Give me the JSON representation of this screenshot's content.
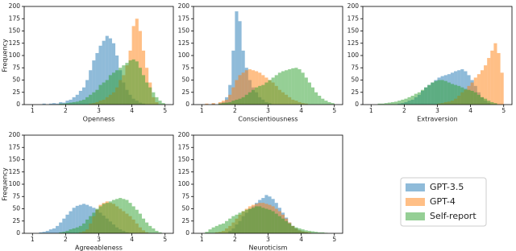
{
  "chart_data": [
    {
      "type": "histogram",
      "xlabel": "Openness",
      "ylabel": "Frequency",
      "xlim": [
        0.75,
        5.25
      ],
      "xticks": [
        1,
        2,
        3,
        4,
        5
      ],
      "ylim": [
        0,
        200
      ],
      "yticks": [
        0,
        25,
        50,
        75,
        100,
        125,
        150,
        175,
        200
      ],
      "bins": [
        1,
        1.1,
        1.2,
        1.3,
        1.4,
        1.5,
        1.6,
        1.7,
        1.8,
        1.9,
        2,
        2.1,
        2.2,
        2.3,
        2.4,
        2.5,
        2.6,
        2.7,
        2.8,
        2.9,
        3,
        3.1,
        3.2,
        3.3,
        3.4,
        3.5,
        3.6,
        3.7,
        3.8,
        3.9,
        4,
        4.1,
        4.2,
        4.3,
        4.4,
        4.5,
        4.6,
        4.7,
        4.8,
        4.9,
        5
      ],
      "series": [
        {
          "name": "GPT-3.5",
          "color": "#1f77b4",
          "values": [
            0,
            0,
            0,
            2,
            0,
            2,
            3,
            2,
            5,
            4,
            8,
            10,
            15,
            20,
            28,
            35,
            50,
            70,
            90,
            105,
            120,
            130,
            140,
            135,
            125,
            100,
            70,
            45,
            30,
            20,
            12,
            8,
            4,
            2,
            0,
            0,
            0,
            0,
            0,
            0
          ]
        },
        {
          "name": "GPT-4",
          "color": "#ff7f0e",
          "values": [
            0,
            0,
            0,
            0,
            0,
            0,
            0,
            0,
            0,
            0,
            0,
            0,
            0,
            0,
            0,
            0,
            0,
            2,
            3,
            5,
            8,
            10,
            15,
            20,
            25,
            35,
            50,
            60,
            80,
            110,
            160,
            175,
            150,
            110,
            75,
            45,
            15,
            5,
            0,
            0
          ]
        },
        {
          "name": "Self-report",
          "color": "#2ca02c",
          "values": [
            0,
            0,
            0,
            0,
            0,
            0,
            0,
            0,
            2,
            2,
            3,
            4,
            5,
            6,
            8,
            10,
            15,
            20,
            25,
            30,
            40,
            45,
            50,
            60,
            65,
            70,
            75,
            80,
            85,
            90,
            92,
            88,
            75,
            60,
            45,
            35,
            25,
            15,
            8,
            3
          ]
        }
      ]
    },
    {
      "type": "histogram",
      "xlabel": "Conscientiousness",
      "xlim": [
        0.75,
        5.25
      ],
      "xticks": [
        1,
        2,
        3,
        4,
        5
      ],
      "ylim": [
        0,
        200
      ],
      "yticks": [
        0,
        25,
        50,
        75,
        100,
        125,
        150,
        175,
        200
      ],
      "bins": [
        1,
        1.1,
        1.2,
        1.3,
        1.4,
        1.5,
        1.6,
        1.7,
        1.8,
        1.9,
        2,
        2.1,
        2.2,
        2.3,
        2.4,
        2.5,
        2.6,
        2.7,
        2.8,
        2.9,
        3,
        3.1,
        3.2,
        3.3,
        3.4,
        3.5,
        3.6,
        3.7,
        3.8,
        3.9,
        4,
        4.1,
        4.2,
        4.3,
        4.4,
        4.5,
        4.6,
        4.7,
        4.8,
        4.9,
        5
      ],
      "series": [
        {
          "color": "#1f77b4",
          "values": [
            0,
            0,
            0,
            2,
            0,
            3,
            5,
            15,
            40,
            110,
            190,
            170,
            110,
            75,
            50,
            35,
            25,
            15,
            10,
            5,
            3,
            0,
            0,
            0,
            0,
            0,
            0,
            0,
            0,
            0,
            0,
            0,
            0,
            0,
            0,
            0,
            0,
            0,
            0,
            0
          ]
        },
        {
          "color": "#ff7f0e",
          "values": [
            0,
            2,
            0,
            3,
            0,
            5,
            8,
            10,
            20,
            35,
            50,
            60,
            65,
            70,
            72,
            70,
            68,
            65,
            60,
            55,
            50,
            45,
            38,
            30,
            25,
            20,
            15,
            10,
            8,
            5,
            3,
            2,
            0,
            0,
            0,
            0,
            0,
            0,
            0,
            0
          ]
        },
        {
          "color": "#2ca02c",
          "values": [
            0,
            0,
            0,
            0,
            0,
            2,
            3,
            4,
            5,
            8,
            10,
            12,
            15,
            20,
            25,
            30,
            35,
            38,
            40,
            45,
            50,
            55,
            60,
            65,
            68,
            70,
            72,
            74,
            75,
            72,
            65,
            55,
            45,
            35,
            25,
            18,
            12,
            8,
            5,
            3
          ]
        }
      ]
    },
    {
      "type": "histogram",
      "xlabel": "Extraversion",
      "xlim": [
        0.75,
        5.25
      ],
      "xticks": [
        1,
        2,
        3,
        4,
        5
      ],
      "ylim": [
        0,
        200
      ],
      "yticks": [
        0,
        25,
        50,
        75,
        100,
        125,
        150,
        175,
        200
      ],
      "bins": [
        1,
        1.1,
        1.2,
        1.3,
        1.4,
        1.5,
        1.6,
        1.7,
        1.8,
        1.9,
        2,
        2.1,
        2.2,
        2.3,
        2.4,
        2.5,
        2.6,
        2.7,
        2.8,
        2.9,
        3,
        3.1,
        3.2,
        3.3,
        3.4,
        3.5,
        3.6,
        3.7,
        3.8,
        3.9,
        4,
        4.1,
        4.2,
        4.3,
        4.4,
        4.5,
        4.6,
        4.7,
        4.8,
        4.9,
        5
      ],
      "series": [
        {
          "color": "#1f77b4",
          "values": [
            0,
            0,
            0,
            0,
            0,
            0,
            0,
            0,
            2,
            3,
            5,
            8,
            10,
            15,
            20,
            28,
            35,
            40,
            45,
            50,
            55,
            58,
            60,
            62,
            65,
            68,
            70,
            72,
            68,
            60,
            50,
            38,
            25,
            15,
            8,
            4,
            0,
            0,
            0,
            0
          ]
        },
        {
          "color": "#ff7f0e",
          "values": [
            0,
            0,
            0,
            0,
            0,
            0,
            0,
            0,
            0,
            0,
            0,
            0,
            0,
            0,
            0,
            0,
            0,
            0,
            0,
            0,
            2,
            3,
            5,
            6,
            8,
            12,
            18,
            25,
            30,
            38,
            45,
            55,
            62,
            70,
            80,
            95,
            110,
            125,
            105,
            65
          ]
        },
        {
          "color": "#2ca02c",
          "values": [
            0,
            0,
            2,
            2,
            3,
            4,
            5,
            6,
            8,
            10,
            12,
            15,
            18,
            22,
            25,
            30,
            35,
            40,
            45,
            48,
            50,
            50,
            48,
            45,
            42,
            40,
            38,
            35,
            32,
            30,
            28,
            25,
            20,
            15,
            12,
            8,
            5,
            3,
            0,
            0
          ]
        }
      ]
    },
    {
      "type": "histogram",
      "xlabel": "Agreeableness",
      "ylabel": "Frequency",
      "xlim": [
        0.75,
        5.25
      ],
      "xticks": [
        1,
        2,
        3,
        4,
        5
      ],
      "ylim": [
        0,
        200
      ],
      "yticks": [
        0,
        25,
        50,
        75,
        100,
        125,
        150,
        175,
        200
      ],
      "bins": [
        1,
        1.1,
        1.2,
        1.3,
        1.4,
        1.5,
        1.6,
        1.7,
        1.8,
        1.9,
        2,
        2.1,
        2.2,
        2.3,
        2.4,
        2.5,
        2.6,
        2.7,
        2.8,
        2.9,
        3,
        3.1,
        3.2,
        3.3,
        3.4,
        3.5,
        3.6,
        3.7,
        3.8,
        3.9,
        4,
        4.1,
        4.2,
        4.3,
        4.4,
        4.5,
        4.6,
        4.7,
        4.8,
        4.9,
        5
      ],
      "series": [
        {
          "color": "#1f77b4",
          "values": [
            0,
            0,
            2,
            3,
            5,
            8,
            10,
            15,
            22,
            30,
            38,
            45,
            52,
            56,
            58,
            60,
            58,
            55,
            52,
            48,
            42,
            36,
            30,
            24,
            18,
            12,
            8,
            5,
            2,
            0,
            0,
            0,
            0,
            0,
            0,
            0,
            0,
            0,
            0,
            0
          ]
        },
        {
          "color": "#ff7f0e",
          "values": [
            0,
            0,
            0,
            0,
            0,
            0,
            0,
            0,
            0,
            0,
            0,
            0,
            0,
            0,
            2,
            4,
            8,
            20,
            35,
            48,
            58,
            62,
            65,
            62,
            60,
            55,
            50,
            45,
            40,
            35,
            28,
            20,
            12,
            6,
            2,
            0,
            0,
            0,
            0,
            0
          ]
        },
        {
          "color": "#2ca02c",
          "values": [
            0,
            0,
            0,
            0,
            0,
            0,
            0,
            0,
            2,
            3,
            5,
            8,
            10,
            12,
            15,
            20,
            28,
            35,
            42,
            50,
            55,
            60,
            62,
            65,
            68,
            70,
            72,
            70,
            68,
            62,
            55,
            48,
            40,
            30,
            22,
            15,
            10,
            5,
            2,
            0
          ]
        }
      ]
    },
    {
      "type": "histogram",
      "xlabel": "Neuroticism",
      "xlim": [
        0.75,
        5.25
      ],
      "xticks": [
        1,
        2,
        3,
        4,
        5
      ],
      "ylim": [
        0,
        200
      ],
      "yticks": [
        0,
        25,
        50,
        75,
        100,
        125,
        150,
        175,
        200
      ],
      "bins": [
        1,
        1.1,
        1.2,
        1.3,
        1.4,
        1.5,
        1.6,
        1.7,
        1.8,
        1.9,
        2,
        2.1,
        2.2,
        2.3,
        2.4,
        2.5,
        2.6,
        2.7,
        2.8,
        2.9,
        3,
        3.1,
        3.2,
        3.3,
        3.4,
        3.5,
        3.6,
        3.7,
        3.8,
        3.9,
        4,
        4.1,
        4.2,
        4.3,
        4.4,
        4.5,
        4.6,
        4.7,
        4.8,
        4.9,
        5
      ],
      "series": [
        {
          "color": "#1f77b4",
          "values": [
            0,
            0,
            0,
            0,
            0,
            0,
            0,
            0,
            5,
            10,
            18,
            25,
            35,
            42,
            50,
            55,
            62,
            68,
            72,
            78,
            75,
            70,
            62,
            52,
            42,
            32,
            22,
            15,
            10,
            6,
            4,
            2,
            0,
            0,
            0,
            0,
            0,
            0,
            0,
            0
          ]
        },
        {
          "color": "#ff7f0e",
          "values": [
            0,
            0,
            0,
            0,
            2,
            3,
            5,
            10,
            15,
            22,
            30,
            38,
            45,
            50,
            55,
            58,
            60,
            62,
            62,
            60,
            58,
            55,
            50,
            45,
            38,
            30,
            22,
            15,
            10,
            6,
            4,
            3,
            2,
            0,
            0,
            0,
            0,
            0,
            0,
            0
          ]
        },
        {
          "color": "#2ca02c",
          "values": [
            0,
            3,
            8,
            12,
            15,
            18,
            20,
            25,
            30,
            35,
            38,
            42,
            45,
            48,
            50,
            52,
            55,
            55,
            52,
            50,
            48,
            45,
            40,
            35,
            30,
            25,
            20,
            15,
            12,
            10,
            8,
            6,
            5,
            4,
            3,
            2,
            2,
            1,
            0,
            0
          ]
        }
      ]
    }
  ]
}
